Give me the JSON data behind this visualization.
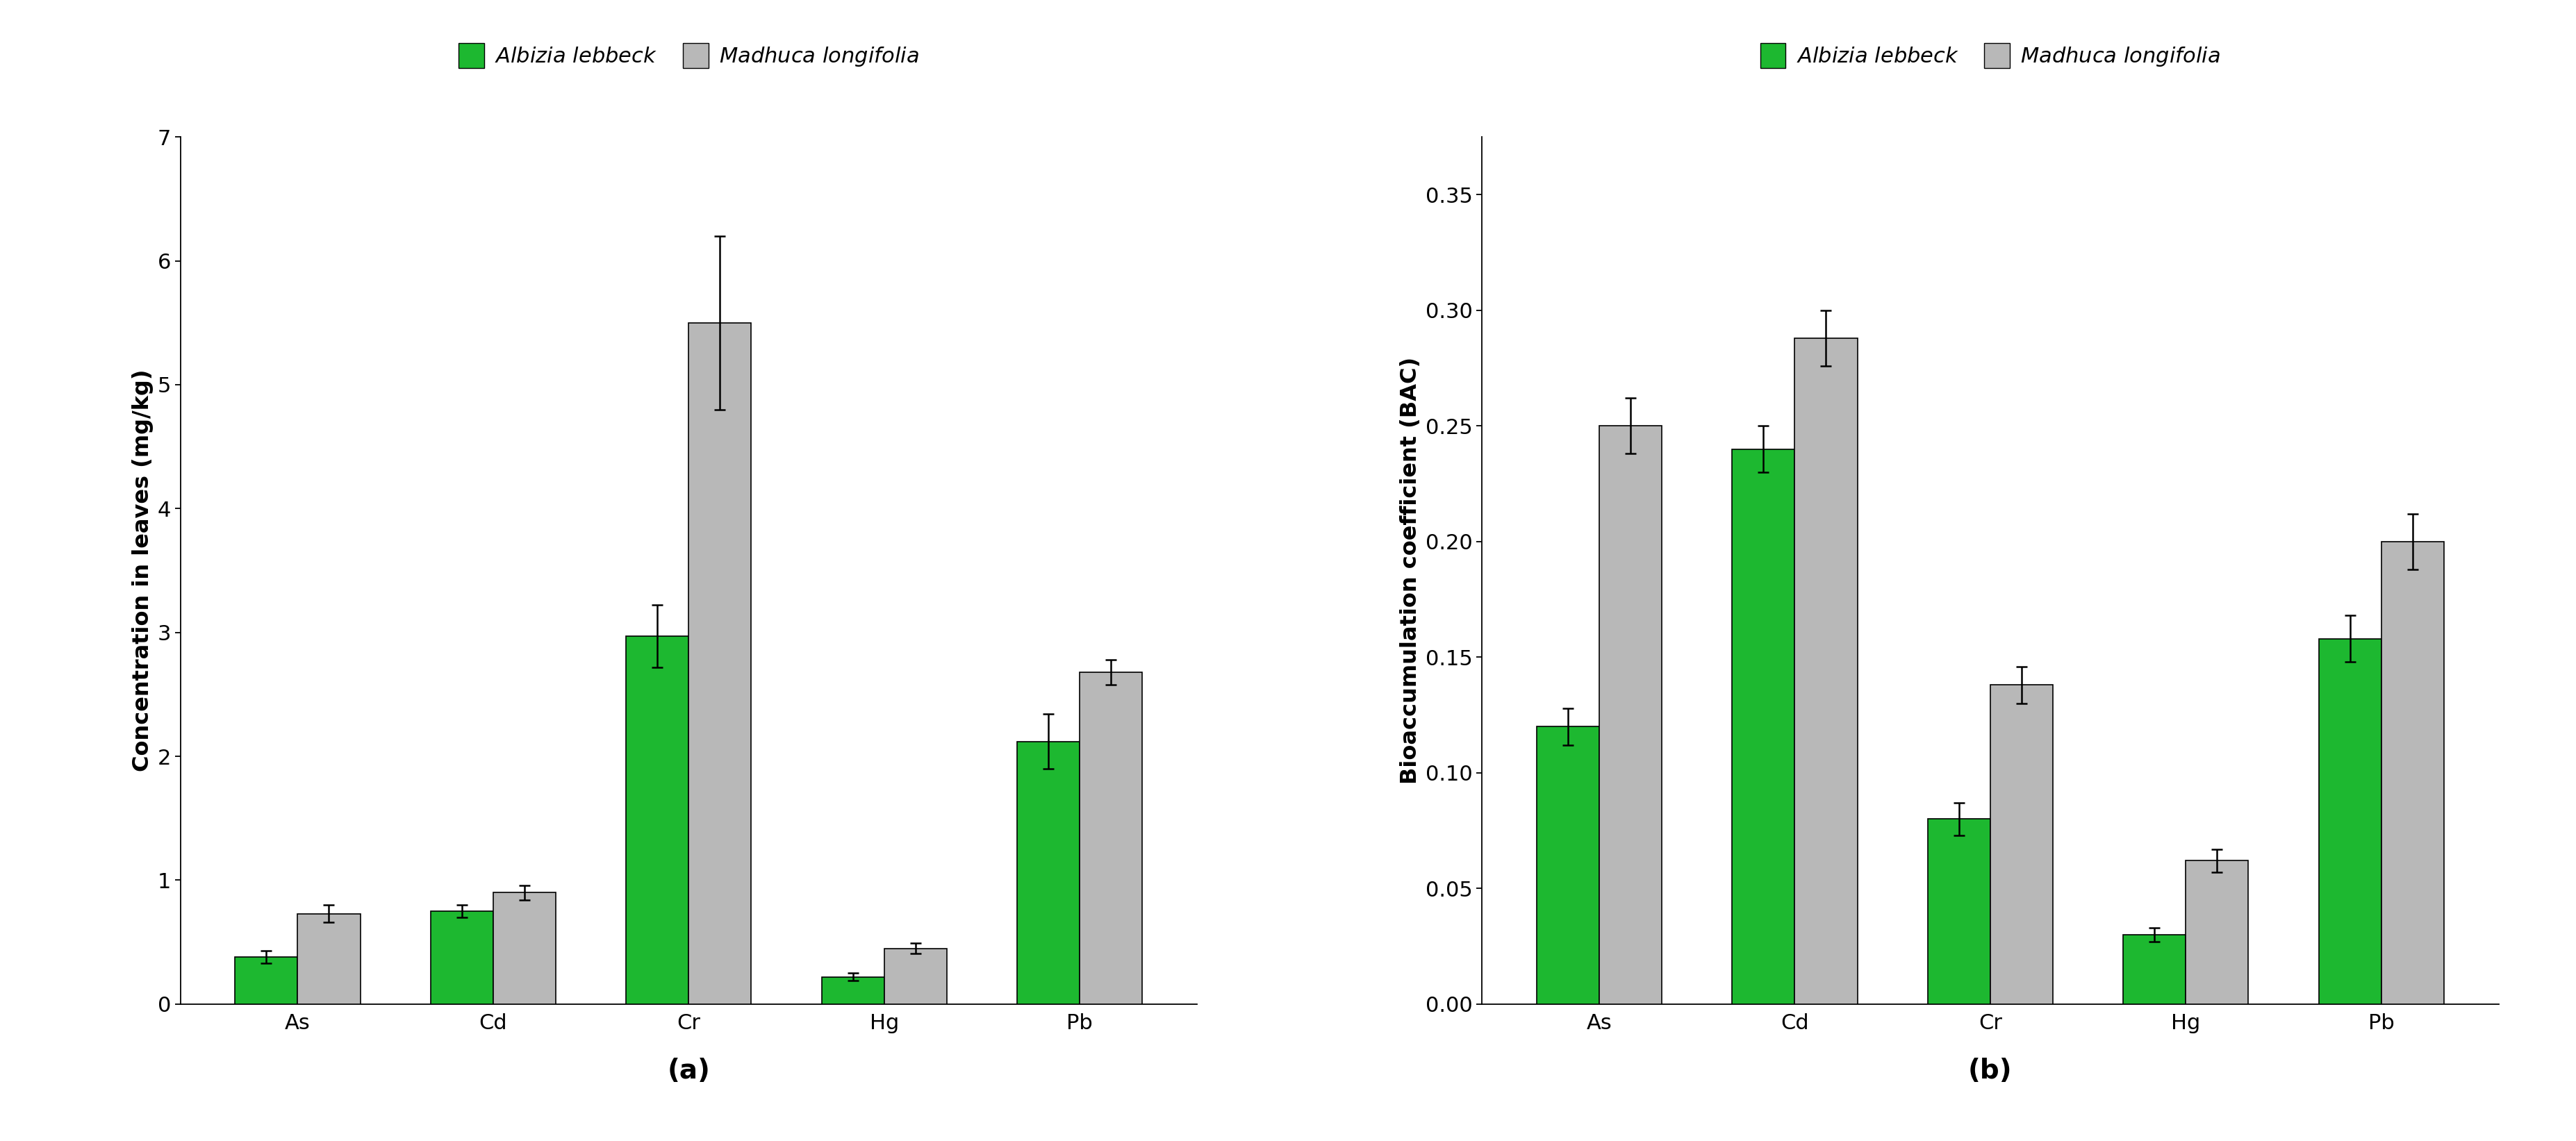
{
  "categories": [
    "As",
    "Cd",
    "Cr",
    "Hg",
    "Pb"
  ],
  "chart_a": {
    "ylabel": "Concentration in leaves (mg/kg)",
    "xlabel_label": "(a)",
    "ylim": [
      0,
      7
    ],
    "yticks": [
      0,
      1,
      2,
      3,
      4,
      5,
      6,
      7
    ],
    "green_values": [
      0.38,
      0.75,
      2.97,
      0.22,
      2.12
    ],
    "gray_values": [
      0.73,
      0.9,
      5.5,
      0.45,
      2.68
    ],
    "green_errors": [
      0.05,
      0.05,
      0.25,
      0.03,
      0.22
    ],
    "gray_errors": [
      0.07,
      0.06,
      0.7,
      0.04,
      0.1
    ]
  },
  "chart_b": {
    "ylabel": "Bioaccumulation coefficient (BAC)",
    "xlabel_label": "(b)",
    "ylim": [
      0,
      0.375
    ],
    "yticks": [
      0.0,
      0.05,
      0.1,
      0.15,
      0.2,
      0.25,
      0.3,
      0.35
    ],
    "green_values": [
      0.12,
      0.24,
      0.08,
      0.03,
      0.158
    ],
    "gray_values": [
      0.25,
      0.288,
      0.138,
      0.062,
      0.2
    ],
    "green_errors": [
      0.008,
      0.01,
      0.007,
      0.003,
      0.01
    ],
    "gray_errors": [
      0.012,
      0.012,
      0.008,
      0.005,
      0.012
    ]
  },
  "green_color": "#1db830",
  "gray_color": "#b8b8b8",
  "bar_width": 0.32,
  "legend_green": "Albizia lebbeck",
  "legend_gray": "Madhuca longifolia",
  "background_color": "#ffffff",
  "edge_color": "#000000",
  "tick_fontsize": 22,
  "label_fontsize": 23,
  "legend_fontsize": 22,
  "sublabel_fontsize": 28
}
